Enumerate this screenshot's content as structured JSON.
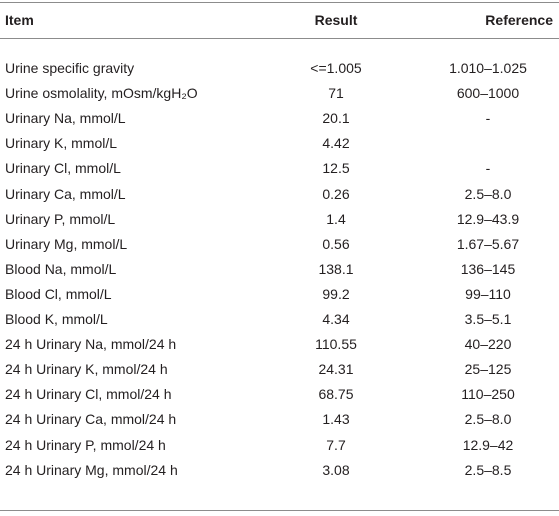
{
  "table": {
    "header": [
      "Item",
      "Result",
      "Reference"
    ],
    "rows": [
      [
        "Urine specific gravity",
        "<=1.005",
        "1.010–1.025"
      ],
      [
        "Urine osmolality, mOsm/kgH₂O",
        "71",
        "600–1000"
      ],
      [
        "Urinary Na, mmol/L",
        "20.1",
        "-"
      ],
      [
        "Urinary K, mmol/L",
        "4.42",
        null
      ],
      [
        "Urinary Cl, mmol/L",
        "12.5",
        "-"
      ],
      [
        "Urinary Ca, mmol/L",
        "0.26",
        "2.5–8.0"
      ],
      [
        "Urinary P, mmol/L",
        "1.4",
        "12.9–43.9"
      ],
      [
        "Urinary Mg, mmol/L",
        "0.56",
        "1.67–5.67"
      ],
      [
        "Blood Na, mmol/L",
        "138.1",
        "136–145"
      ],
      [
        "Blood Cl, mmol/L",
        "99.2",
        "99–110"
      ],
      [
        "Blood K, mmol/L",
        "4.34",
        "3.5–5.1"
      ],
      [
        "24 h Urinary Na, mmol/24 h",
        "110.55",
        "40–220"
      ],
      [
        "24 h Urinary K, mmol/24 h",
        "24.31",
        "25–125"
      ],
      [
        "24 h Urinary Cl, mmol/24 h",
        "68.75",
        "110–250"
      ],
      [
        "24 h Urinary Ca, mmol/24 h",
        "1.43",
        "2.5–8.0"
      ],
      [
        "24 h Urinary P, mmol/24 h",
        "7.7",
        "12.9–42"
      ],
      [
        "24 h Urinary Mg, mmol/24 h",
        "3.08",
        "2.5–8.5"
      ]
    ]
  }
}
